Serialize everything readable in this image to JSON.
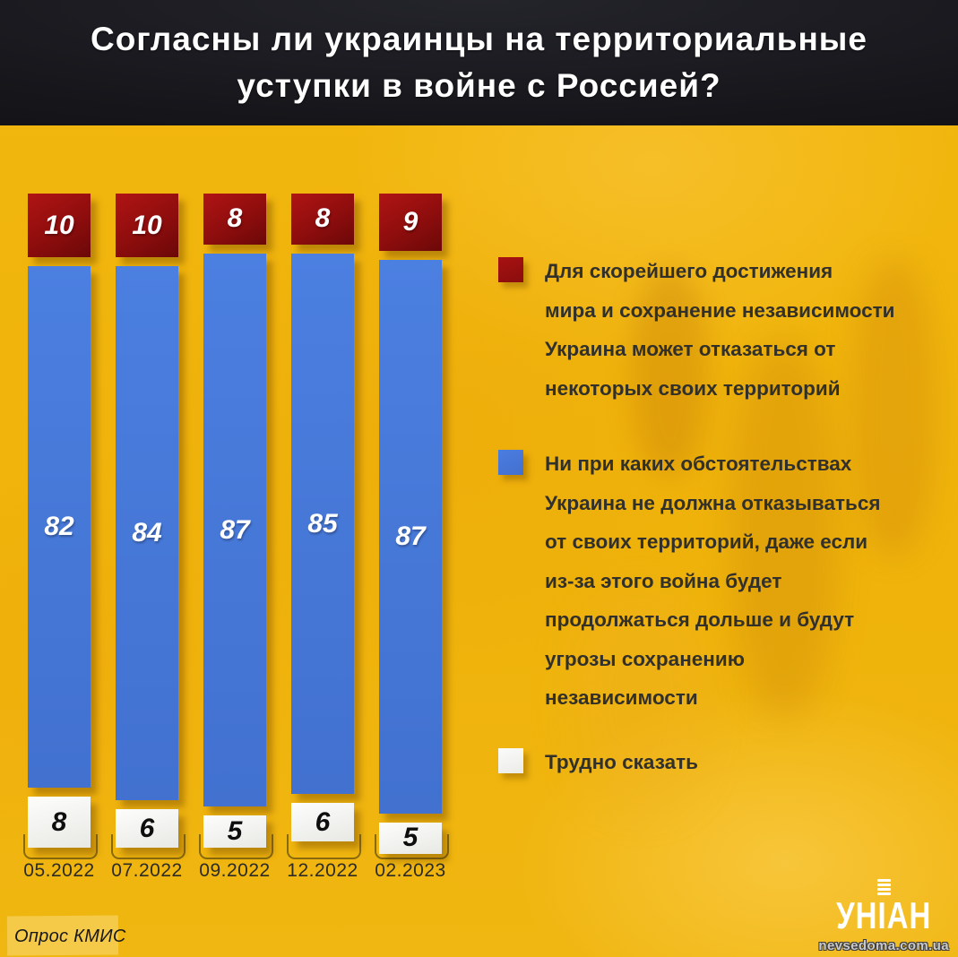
{
  "header": {
    "title_line1": "Согласны ли украинцы на территориальные",
    "title_line2": "уступки в войне с Россией?"
  },
  "chart_data": {
    "type": "bar",
    "stacked": true,
    "unit": "%",
    "categories": [
      "05.2022",
      "07.2022",
      "09.2022",
      "12.2022",
      "02.2023"
    ],
    "series": [
      {
        "name": "Для скорейшего достижения мира и сохранение независимости Украина может отказаться от некоторых своих территорий",
        "color": "#9a0f0f",
        "values": [
          10,
          10,
          8,
          8,
          9
        ]
      },
      {
        "name": "Ни при каких обстоятельствах Украина не должна отказываться от своих территорий, даже если из-за этого война будет продолжаться дольше и будут угрозы сохранению независимости",
        "color": "#4678d9",
        "values": [
          82,
          84,
          87,
          85,
          87
        ]
      },
      {
        "name": "Трудно сказать",
        "color": "#f5f5f3",
        "values": [
          8,
          6,
          5,
          6,
          5
        ]
      }
    ],
    "ylim": [
      0,
      100
    ],
    "legend_position": "right",
    "grid": false
  },
  "legend": {
    "items": [
      {
        "swatch": "red",
        "color": "#9a0f0f",
        "lines": [
          "Для скорейшего достижения",
          "мира и сохранение независимости",
          "Украина может отказаться от",
          "некоторых своих территорий"
        ]
      },
      {
        "swatch": "blue",
        "color": "#4678d9",
        "lines": [
          "Ни при каких обстоятельствах",
          "Украина не должна отказываться",
          "от своих территорий, даже если",
          "из-за этого война будет",
          "продолжаться дольше и будут",
          "угрозы сохранению",
          "независимости"
        ]
      },
      {
        "swatch": "white",
        "color": "#f5f5f3",
        "lines": [
          "Трудно сказать"
        ]
      }
    ]
  },
  "footer": {
    "source": "Опрос КМИС",
    "brand": "УНІАН",
    "watermark": "nevsedoma.com.ua"
  }
}
